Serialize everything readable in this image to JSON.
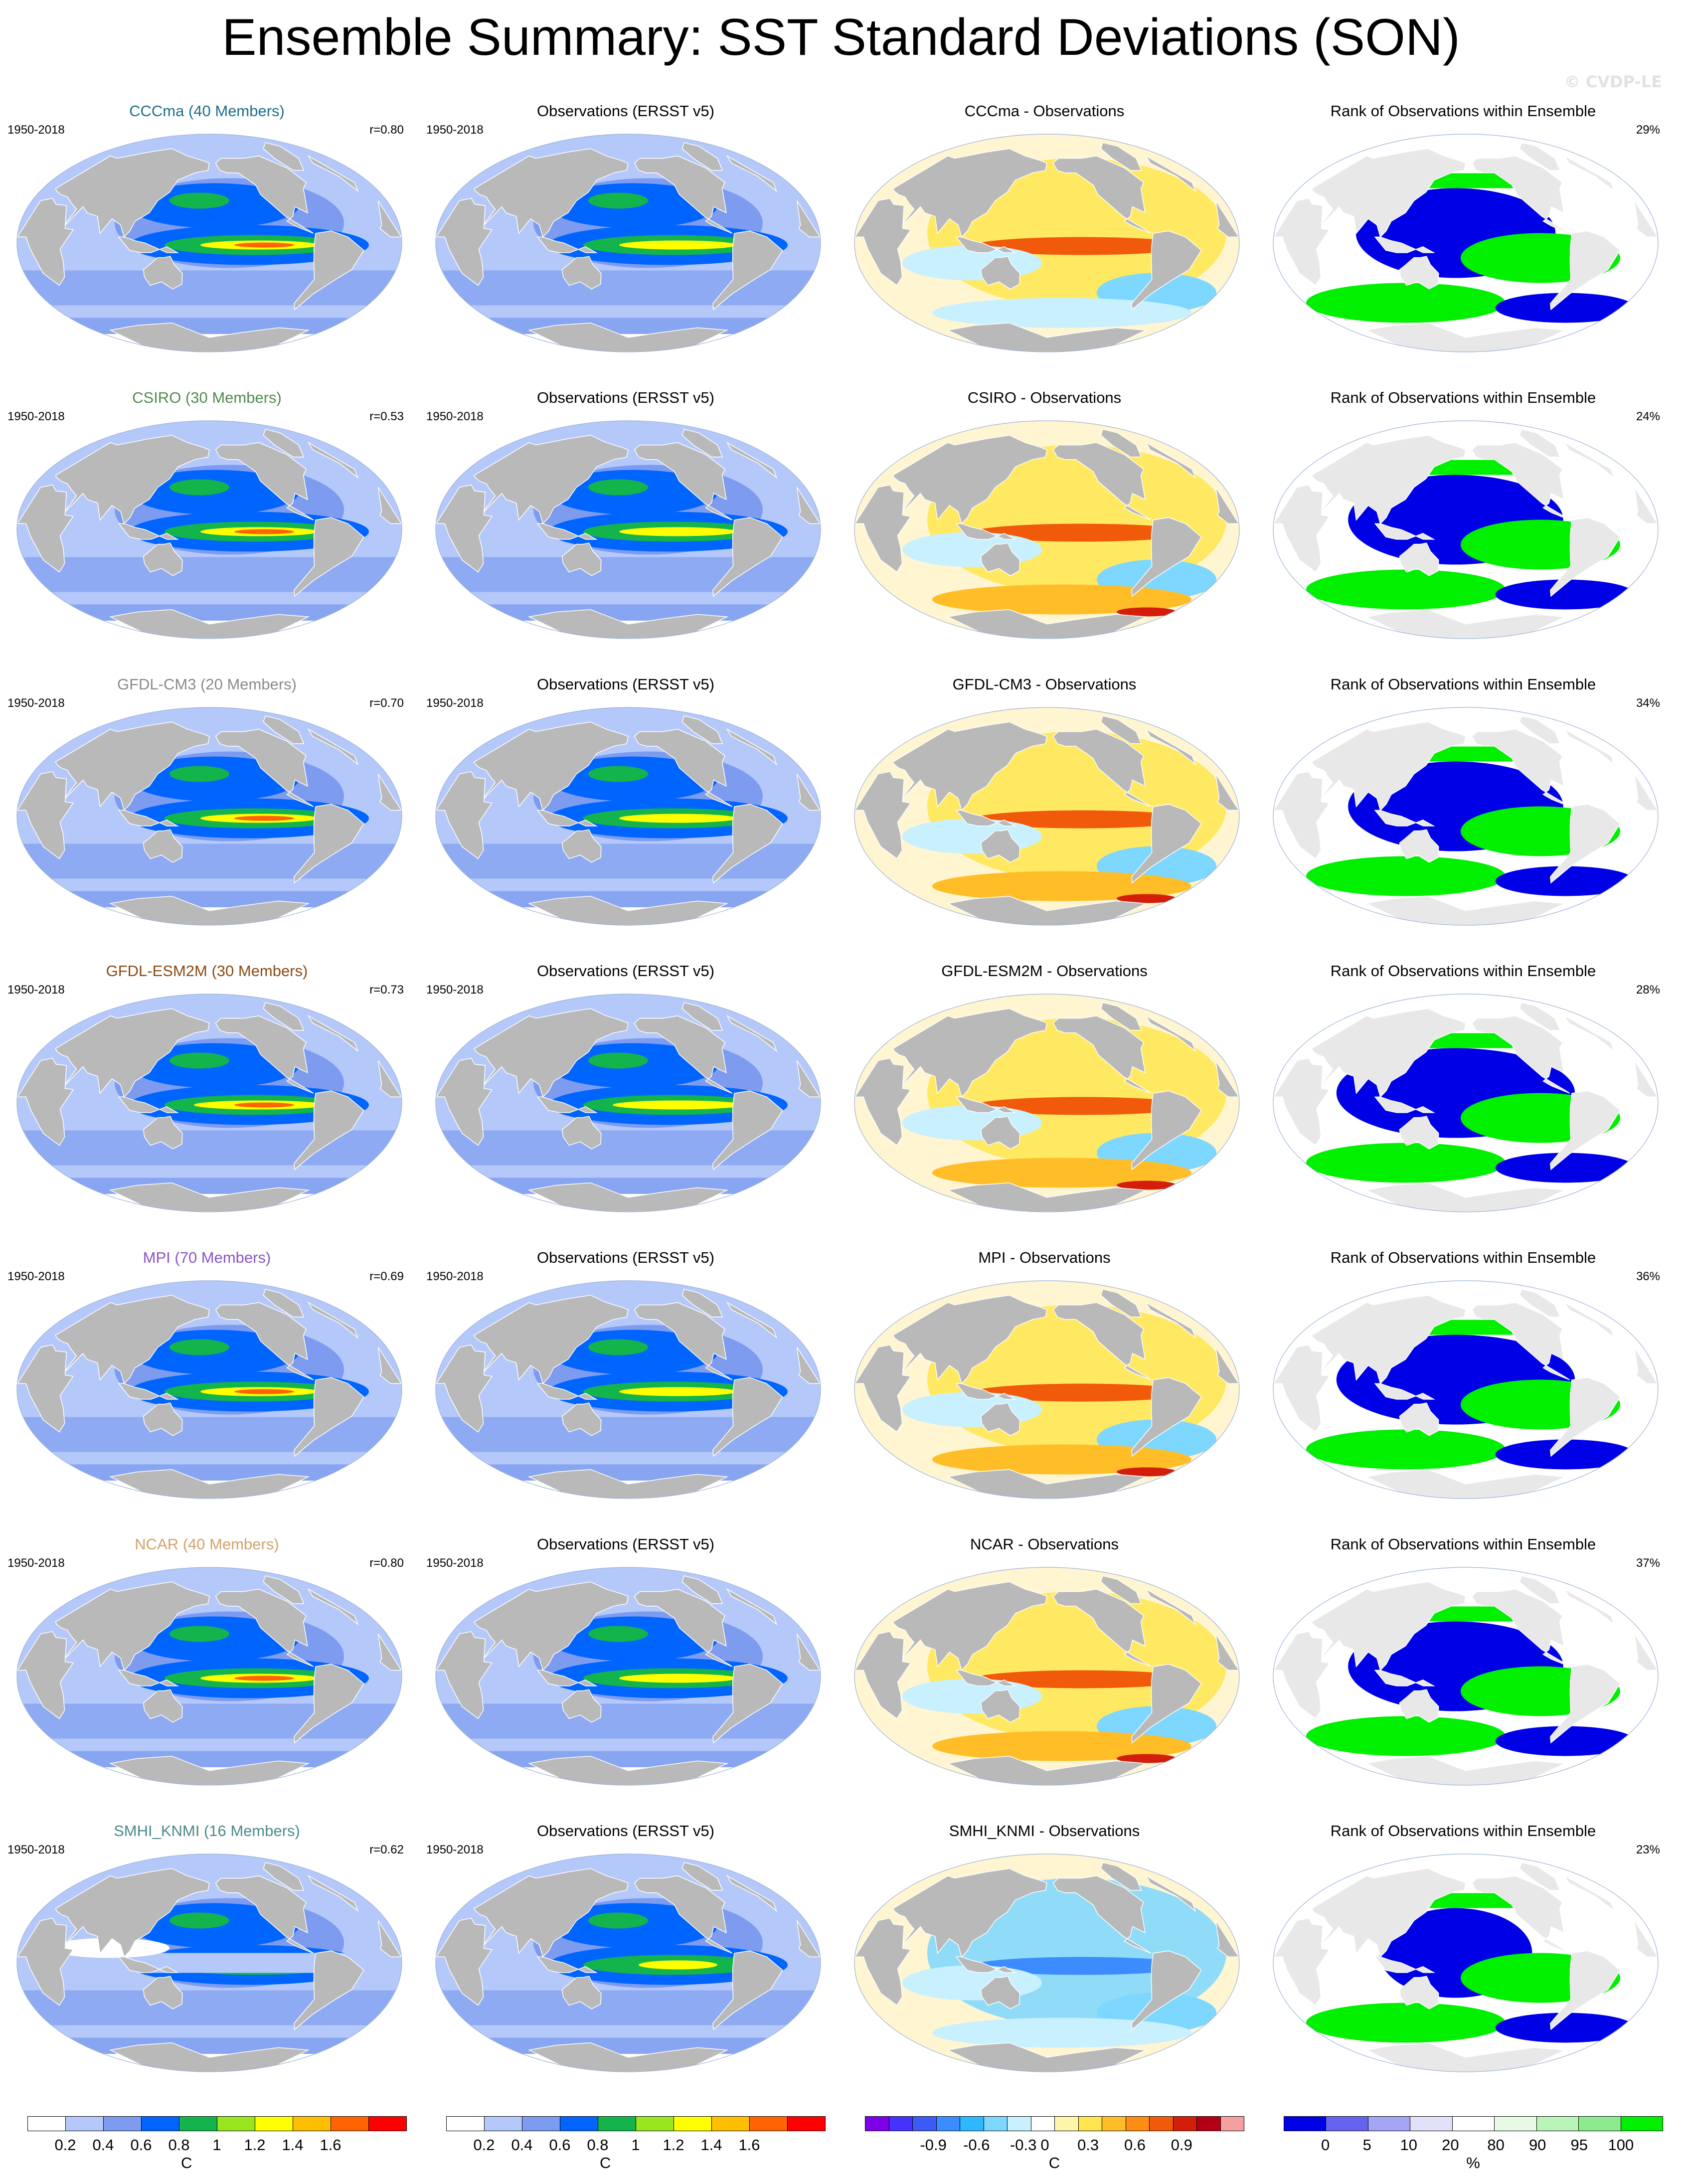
{
  "title": "Ensemble Summary: SST Standard Deviations (SON)",
  "watermark": "© CVDP-LE",
  "colors": {
    "land": "#b9b9b9",
    "ocean_std": [
      "#ffffff",
      "#b4c8fa",
      "#7d9cf0",
      "#0064ff",
      "#13b44b",
      "#9ae61e",
      "#ffff00",
      "#ffbe00",
      "#ff6400",
      "#ff0000"
    ],
    "diff": [
      "#7d00e6",
      "#4632ff",
      "#3c5af5",
      "#3c8cff",
      "#2db9ff",
      "#7dd7ff",
      "#c8f0ff",
      "#ffffff",
      "#fff5aa",
      "#ffe650",
      "#ffbe28",
      "#ff8c14",
      "#f05a0a",
      "#d21e0a",
      "#b40014",
      "#f5a0a0"
    ],
    "rank": [
      "#0000e6",
      "#6464f0",
      "#a5a5f5",
      "#e1e1fa",
      "#ffffff",
      "#e6fae6",
      "#b9f5b9",
      "#8ceb8c",
      "#00f000"
    ]
  },
  "common": {
    "years": "1950-2018",
    "obs_title": "Observations (ERSST v5)",
    "rank_title": "Rank of Observations within Ensemble",
    "diff_suffix": " - Observations"
  },
  "rows": [
    {
      "model": "CCCma",
      "model_title": "CCCma (40 Members)",
      "title_color": "#1c6f8c",
      "r": "r=0.80",
      "rank_pct": "29%",
      "ens_level": 0.6,
      "diff_bias": 0.0,
      "rank_mix": 0.45
    },
    {
      "model": "CSIRO",
      "model_title": "CSIRO (30 Members)",
      "title_color": "#4f8a4f",
      "r": "r=0.53",
      "rank_pct": "24%",
      "ens_level": 0.6,
      "diff_bias": 0.2,
      "rank_mix": 0.55
    },
    {
      "model": "GFDL-CM3",
      "model_title": "GFDL-CM3 (20 Members)",
      "title_color": "#8a8a8a",
      "r": "r=0.70",
      "rank_pct": "34%",
      "ens_level": 0.6,
      "diff_bias": 0.2,
      "rank_mix": 0.55
    },
    {
      "model": "GFDL-ESM2M",
      "model_title": "GFDL-ESM2M (30 Members)",
      "title_color": "#8b4a14",
      "r": "r=0.73",
      "rank_pct": "28%",
      "ens_level": 0.7,
      "diff_bias": 0.3,
      "rank_mix": 0.7
    },
    {
      "model": "MPI",
      "model_title": "MPI (70 Members)",
      "title_color": "#8a55c8",
      "r": "r=0.69",
      "rank_pct": "36%",
      "ens_level": 0.6,
      "diff_bias": 0.2,
      "rank_mix": 0.7
    },
    {
      "model": "NCAR",
      "model_title": "NCAR (40 Members)",
      "title_color": "#d2a26a",
      "r": "r=0.80",
      "rank_pct": "37%",
      "ens_level": 0.6,
      "diff_bias": 0.2,
      "rank_mix": 0.55
    },
    {
      "model": "SMHI_KNMI",
      "model_title": "SMHI_KNMI (16 Members)",
      "title_color": "#4a8a8a",
      "r": "r=0.62",
      "rank_pct": "23%",
      "ens_level": 0.3,
      "diff_bias": -0.2,
      "rank_mix": 0.15
    }
  ],
  "legends": {
    "std": {
      "ticks": [
        "0.2",
        "0.4",
        "0.6",
        "0.8",
        "1",
        "1.2",
        "1.4",
        "1.6"
      ],
      "unit": "C"
    },
    "diff": {
      "ticks": [
        "-0.9",
        "-0.6",
        "-0.3",
        "0",
        "0.3",
        "0.6",
        "0.9"
      ],
      "unit": "C"
    },
    "rank": {
      "ticks": [
        "0",
        "5",
        "10",
        "20",
        "80",
        "90",
        "95",
        "100"
      ],
      "unit": "%"
    }
  },
  "chart_data": {
    "type": "heatmap",
    "title": "Ensemble Summary: SST Standard Deviations (SON)",
    "period": "1950-2018",
    "panels_per_row": [
      "ensemble mean std",
      "Observations (ERSST v5)",
      "model - Observations",
      "Rank of Observations within Ensemble"
    ],
    "pattern_correlation": [
      {
        "model": "CCCma",
        "members": 40,
        "r": 0.8,
        "rank_percent": 29
      },
      {
        "model": "CSIRO",
        "members": 30,
        "r": 0.53,
        "rank_percent": 24
      },
      {
        "model": "GFDL-CM3",
        "members": 20,
        "r": 0.7,
        "rank_percent": 34
      },
      {
        "model": "GFDL-ESM2M",
        "members": 30,
        "r": 0.73,
        "rank_percent": 28
      },
      {
        "model": "MPI",
        "members": 70,
        "r": 0.69,
        "rank_percent": 36
      },
      {
        "model": "NCAR",
        "members": 40,
        "r": 0.8,
        "rank_percent": 37
      },
      {
        "model": "SMHI_KNMI",
        "members": 16,
        "r": 0.62,
        "rank_percent": 23
      }
    ],
    "colorbars": {
      "std_C": [
        0.2,
        0.4,
        0.6,
        0.8,
        1,
        1.2,
        1.4,
        1.6
      ],
      "diff_C": [
        -0.9,
        -0.6,
        -0.3,
        0,
        0.3,
        0.6,
        0.9
      ],
      "rank_percent": [
        0,
        5,
        10,
        20,
        80,
        90,
        95,
        100
      ]
    }
  }
}
